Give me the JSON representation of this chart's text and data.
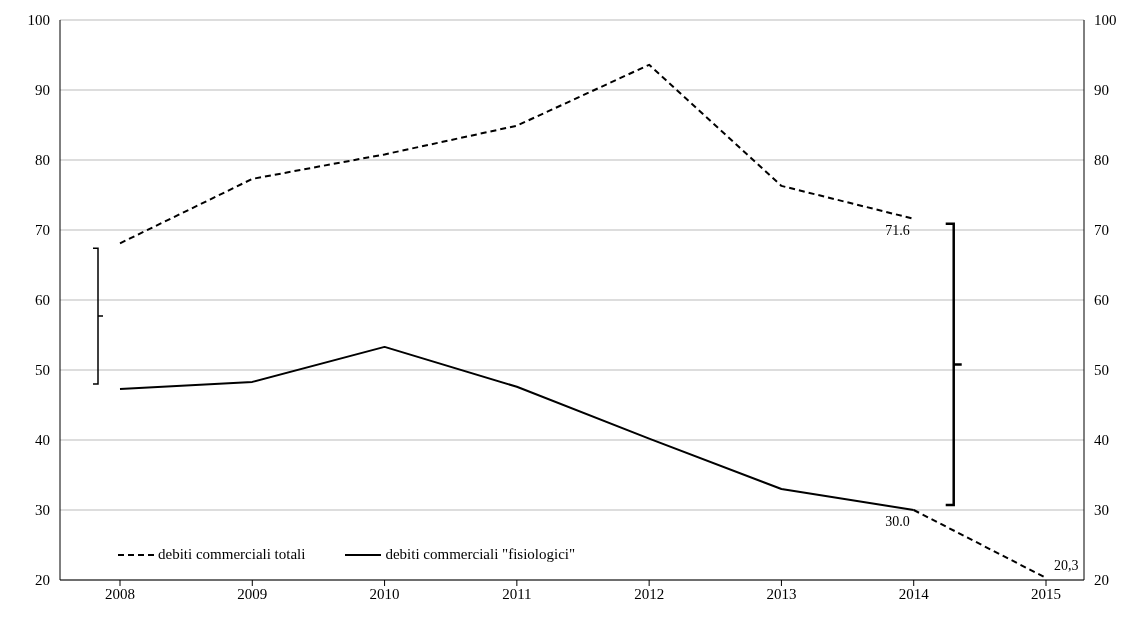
{
  "chart_data": {
    "type": "line",
    "categories": [
      "2008",
      "2009",
      "2010",
      "2011",
      "2012",
      "2013",
      "2014",
      "2015"
    ],
    "series": [
      {
        "name": "debiti commerciali totali",
        "color": "#000000",
        "line_style": "dashed",
        "values": [
          68.1,
          77.3,
          80.8,
          84.9,
          93.6,
          76.3,
          71.6,
          null
        ],
        "value_labels": [
          null,
          null,
          null,
          null,
          null,
          null,
          "71.6",
          null
        ]
      },
      {
        "name": "debiti commerciali \"fisiologici\"",
        "color": "#000000",
        "line_style": "solid",
        "values": [
          47.3,
          48.3,
          53.3,
          47.6,
          40.2,
          33.0,
          30.0,
          null
        ],
        "value_labels": [
          null,
          null,
          null,
          null,
          null,
          null,
          "30.0",
          null
        ]
      },
      {
        "color": "#000000",
        "line_style": "dashed",
        "values": [
          null,
          null,
          null,
          null,
          null,
          null,
          30.0,
          20.3
        ],
        "value_labels": [
          null,
          null,
          null,
          null,
          null,
          null,
          null,
          "20,3"
        ]
      }
    ],
    "ylim": [
      20,
      100
    ],
    "yticks": [
      20,
      30,
      40,
      50,
      60,
      70,
      80,
      90,
      100
    ],
    "y2lim": [
      20,
      100
    ],
    "y2ticks": [
      20,
      30,
      40,
      50,
      60,
      70,
      80,
      90,
      100
    ],
    "grid": "y",
    "legend": "bottom left",
    "marker": "none"
  }
}
